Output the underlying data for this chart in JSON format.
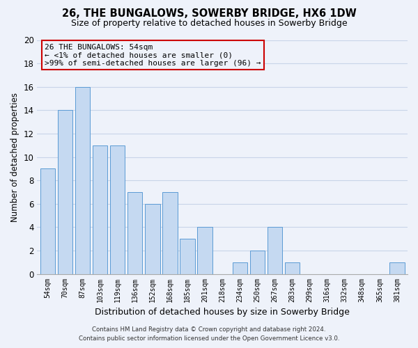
{
  "title": "26, THE BUNGALOWS, SOWERBY BRIDGE, HX6 1DW",
  "subtitle": "Size of property relative to detached houses in Sowerby Bridge",
  "xlabel": "Distribution of detached houses by size in Sowerby Bridge",
  "ylabel": "Number of detached properties",
  "categories": [
    "54sqm",
    "70sqm",
    "87sqm",
    "103sqm",
    "119sqm",
    "136sqm",
    "152sqm",
    "168sqm",
    "185sqm",
    "201sqm",
    "218sqm",
    "234sqm",
    "250sqm",
    "267sqm",
    "283sqm",
    "299sqm",
    "316sqm",
    "332sqm",
    "348sqm",
    "365sqm",
    "381sqm"
  ],
  "values": [
    9,
    14,
    16,
    11,
    11,
    7,
    6,
    7,
    3,
    4,
    0,
    1,
    2,
    4,
    1,
    0,
    0,
    0,
    0,
    0,
    1
  ],
  "bar_color": "#c5d9f1",
  "bar_edge_color": "#5b9bd5",
  "ylim": [
    0,
    20
  ],
  "yticks": [
    0,
    2,
    4,
    6,
    8,
    10,
    12,
    14,
    16,
    18,
    20
  ],
  "annotation_title": "26 THE BUNGALOWS: 54sqm",
  "annotation_line1": "← <1% of detached houses are smaller (0)",
  "annotation_line2": ">99% of semi-detached houses are larger (96) →",
  "annotation_box_edge": "#cc0000",
  "footer_line1": "Contains HM Land Registry data © Crown copyright and database right 2024.",
  "footer_line2": "Contains public sector information licensed under the Open Government Licence v3.0.",
  "grid_color": "#c8d4e8",
  "background_color": "#eef2fa",
  "title_fontsize": 10.5,
  "subtitle_fontsize": 9,
  "ylabel_fontsize": 8.5,
  "xlabel_fontsize": 9
}
